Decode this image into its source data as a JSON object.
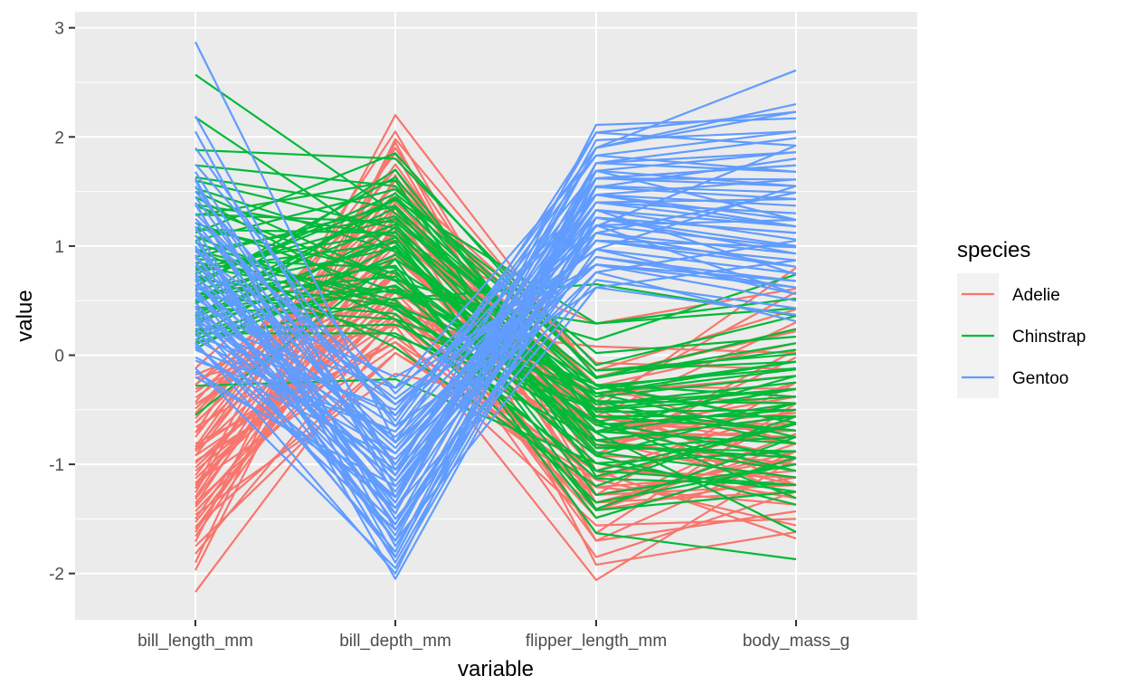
{
  "chart_data": {
    "type": "line",
    "subtype": "parallel-coordinates",
    "title": "",
    "xlabel": "variable",
    "ylabel": "value",
    "categories": [
      "bill_length_mm",
      "bill_depth_mm",
      "flipper_length_mm",
      "body_mass_g"
    ],
    "ylim": [
      -2.45,
      3.1
    ],
    "yticks": [
      -2,
      -1,
      0,
      1,
      2,
      3
    ],
    "ytick_labels": [
      "-2",
      "-1",
      "0",
      "1",
      "2",
      "3"
    ],
    "grid": true,
    "legend": {
      "title": "species",
      "placement": "right",
      "entries": [
        "Adelie",
        "Chinstrap",
        "Gentoo"
      ]
    },
    "colors": {
      "Adelie": "#F8766D",
      "Chinstrap": "#00BA38",
      "Gentoo": "#619CFF",
      "panel_background": "#EBEBEB",
      "gridline": "#FFFFFF",
      "legend_key_background": "#F2F2F2"
    },
    "series": [
      {
        "name": "Adelie",
        "values": [
          [
            -0.88,
            0.78,
            -1.42,
            -0.56
          ],
          [
            -0.81,
            0.12,
            -1.06,
            -0.5
          ],
          [
            -0.66,
            0.43,
            -0.42,
            -1.19
          ],
          [
            -1.32,
            1.09,
            -0.56,
            -0.94
          ],
          [
            -0.84,
            1.75,
            -0.78,
            -0.69
          ],
          [
            -0.92,
            0.32,
            -1.42,
            -0.72
          ],
          [
            -0.86,
            1.25,
            -0.42,
            0.58
          ],
          [
            -0.18,
            0.58,
            -1.35,
            -1.25
          ],
          [
            -1.71,
            1.98,
            -0.2,
            0.24
          ],
          [
            -1.35,
            0.32,
            -1.13,
            -0.63
          ],
          [
            -1.22,
            2.2,
            -0.2,
            0.22
          ],
          [
            -0.27,
            1.35,
            -0.49,
            0.8
          ],
          [
            -1.3,
            1.4,
            -0.27,
            -0.81
          ],
          [
            -1.59,
            0.94,
            -1.06,
            -1.68
          ],
          [
            -0.71,
            2.05,
            -1.06,
            -0.5
          ],
          [
            -0.62,
            1.14,
            -0.7,
            -0.53
          ],
          [
            -0.49,
            1.25,
            -0.91,
            -0.02
          ],
          [
            -1.22,
            0.89,
            -0.78,
            -1.0
          ],
          [
            -1.9,
            1.95,
            -1.42,
            -1.12
          ],
          [
            -1.5,
            1.14,
            -0.63,
            -0.63
          ],
          [
            -1.57,
            0.02,
            -1.06,
            -1.12
          ],
          [
            -0.92,
            1.44,
            -0.85,
            -0.44
          ],
          [
            -2.17,
            0.27,
            -2.06,
            -0.94
          ],
          [
            -1.03,
            0.73,
            -1.85,
            -1.25
          ],
          [
            -0.31,
            0.48,
            -0.35,
            -0.19
          ],
          [
            -1.17,
            0.52,
            -1.49,
            -0.94
          ],
          [
            -1.66,
            0.94,
            -0.7,
            -0.38
          ],
          [
            -0.97,
            0.17,
            -1.21,
            -1.37
          ],
          [
            -0.55,
            1.85,
            -1.28,
            -0.25
          ],
          [
            -1.39,
            0.63,
            -0.99,
            -1.31
          ],
          [
            -1.46,
            -0.17,
            -0.56,
            -0.81
          ],
          [
            -0.75,
            1.6,
            -0.28,
            0.11
          ],
          [
            -1.19,
            0.78,
            -1.7,
            -0.88
          ],
          [
            -0.43,
            1.7,
            -0.92,
            0.05
          ],
          [
            -1.75,
            0.02,
            -1.14,
            -1.56
          ],
          [
            -0.27,
            1.05,
            0.29,
            0.61
          ],
          [
            -1.13,
            0.58,
            -0.63,
            -0.69
          ],
          [
            -0.39,
            0.89,
            -0.7,
            -0.38
          ],
          [
            -1.62,
            1.14,
            -1.21,
            -1.06
          ],
          [
            -0.53,
            1.3,
            -0.78,
            -0.69
          ],
          [
            -1.43,
            0.48,
            -0.49,
            -1.31
          ],
          [
            -0.58,
            1.49,
            -1.35,
            -0.88
          ],
          [
            -1.97,
            1.65,
            -1.92,
            -1.62
          ],
          [
            -0.86,
            0.37,
            -0.78,
            -0.56
          ],
          [
            -1.26,
            1.9,
            -0.85,
            -0.25
          ],
          [
            -0.97,
            0.12,
            -1.56,
            -1.5
          ],
          [
            -0.99,
            0.63,
            -0.35,
            -0.44
          ],
          [
            -0.12,
            1.55,
            -0.14,
            0.42
          ],
          [
            -1.53,
            0.78,
            -1.42,
            -0.81
          ],
          [
            -0.21,
            0.27,
            0.08,
            0.02
          ],
          [
            -0.71,
            1.0,
            -0.92,
            -1.0
          ],
          [
            -1.06,
            0.43,
            -1.28,
            -1.19
          ],
          [
            -1.1,
            1.19,
            -0.56,
            0.3
          ],
          [
            -0.45,
            0.73,
            -1.63,
            -0.44
          ],
          [
            -1.82,
            0.38,
            -0.78,
            -1.19
          ],
          [
            -0.88,
            1.6,
            -0.07,
            -0.13
          ],
          [
            -1.37,
            1.35,
            -1.7,
            -1.43
          ],
          [
            -0.34,
            0.92,
            -0.7,
            -0.75
          ],
          [
            -1.17,
            0.07,
            -1.28,
            -0.94
          ],
          [
            -0.62,
            1.09,
            -0.28,
            -0.31
          ]
        ]
      },
      {
        "name": "Chinstrap",
        "values": [
          [
            2.57,
            1.3,
            -0.28,
            -0.62
          ],
          [
            2.18,
            0.95,
            -0.42,
            -0.44
          ],
          [
            1.88,
            1.8,
            -0.09,
            0.36
          ],
          [
            1.74,
            1.55,
            -0.59,
            -1.31
          ],
          [
            1.63,
            1.35,
            -0.78,
            -0.56
          ],
          [
            1.5,
            0.69,
            0.14,
            0.74
          ],
          [
            1.38,
            1.09,
            -1.41,
            -0.75
          ],
          [
            1.28,
            1.6,
            -1.11,
            -0.63
          ],
          [
            1.21,
            0.58,
            -0.31,
            -0.06
          ],
          [
            1.12,
            1.85,
            -0.2,
            0.05
          ],
          [
            1.03,
            0.43,
            -0.71,
            -1.62
          ],
          [
            0.95,
            1.27,
            -0.52,
            -0.5
          ],
          [
            0.88,
            0.8,
            -0.38,
            -0.19
          ],
          [
            0.8,
            1.13,
            -1.06,
            -1.19
          ],
          [
            0.73,
            0.17,
            -0.5,
            -0.38
          ],
          [
            0.67,
            1.48,
            0.02,
            0.17
          ],
          [
            0.6,
            0.98,
            -0.85,
            -0.88
          ],
          [
            0.54,
            0.38,
            -1.35,
            -1.0
          ],
          [
            0.48,
            1.7,
            -0.61,
            -0.31
          ],
          [
            0.42,
            0.63,
            -0.99,
            -1.25
          ],
          [
            0.36,
            1.43,
            -0.35,
            -0.13
          ],
          [
            0.3,
            0.88,
            -1.63,
            -1.87
          ],
          [
            0.24,
            0.28,
            -0.49,
            -0.69
          ],
          [
            0.18,
            1.17,
            -0.82,
            -0.94
          ],
          [
            0.12,
            0.52,
            0.65,
            0.36
          ],
          [
            0.06,
            1.0,
            -0.92,
            -0.44
          ],
          [
            1.45,
            0.42,
            -0.7,
            -0.81
          ],
          [
            1.29,
            1.22,
            -0.21,
            0.11
          ],
          [
            1.17,
            0.75,
            -0.64,
            -1.06
          ],
          [
            1.05,
            1.52,
            -0.14,
            -0.06
          ],
          [
            0.98,
            0.07,
            -1.2,
            -0.56
          ],
          [
            0.9,
            1.37,
            -0.45,
            -0.25
          ],
          [
            0.85,
            0.57,
            0.29,
            0.52
          ],
          [
            0.78,
            1.03,
            -0.89,
            -1.12
          ],
          [
            0.7,
            0.45,
            -0.27,
            -0.38
          ],
          [
            0.63,
            1.63,
            -0.56,
            -0.69
          ],
          [
            0.56,
            0.82,
            -1.49,
            -0.94
          ],
          [
            0.5,
            1.2,
            -0.7,
            -0.19
          ],
          [
            0.44,
            0.33,
            -0.35,
            -0.75
          ],
          [
            0.38,
            1.05,
            -1.28,
            -1.0
          ],
          [
            0.33,
            0.6,
            -0.45,
            -0.31
          ],
          [
            0.27,
            1.45,
            -0.14,
            0.01
          ],
          [
            0.2,
            0.2,
            -0.78,
            -1.06
          ],
          [
            0.14,
            0.92,
            -0.56,
            -0.56
          ],
          [
            -0.28,
            -0.22,
            -0.99,
            -0.88
          ],
          [
            -0.55,
            0.88,
            -0.27,
            -0.62
          ],
          [
            1.37,
            0.68,
            -0.71,
            -0.44
          ],
          [
            1.15,
            1.12,
            -0.42,
            -0.81
          ],
          [
            0.96,
            0.5,
            -1.13,
            -1.19
          ],
          [
            0.75,
            1.25,
            -0.21,
            0.24
          ],
          [
            0.55,
            0.72,
            -0.64,
            -0.5
          ],
          [
            0.35,
            1.08,
            -0.85,
            -0.75
          ],
          [
            1.53,
            0.95,
            -0.49,
            -0.31
          ],
          [
            1.09,
            0.33,
            -1.06,
            -0.62
          ],
          [
            0.68,
            1.42,
            0.29,
            0.43
          ],
          [
            0.22,
            0.64,
            -0.61,
            -0.94
          ],
          [
            1.6,
            1.16,
            -0.35,
            -0.06
          ],
          [
            0.82,
            0.47,
            -0.92,
            -1.37
          ],
          [
            0.47,
            1.35,
            -0.28,
            -0.12
          ],
          [
            0.1,
            0.78,
            -1.42,
            -1.25
          ]
        ]
      },
      {
        "name": "Gentoo",
        "values": [
          [
            2.87,
            -0.8,
            1.18,
            1.92
          ],
          [
            2.19,
            -1.05,
            1.62,
            1.55
          ],
          [
            2.05,
            -1.3,
            1.4,
            1.18
          ],
          [
            1.6,
            -1.6,
            0.97,
            1.55
          ],
          [
            1.45,
            -1.1,
            2.04,
            2.23
          ],
          [
            1.3,
            -0.55,
            1.69,
            1.24
          ],
          [
            1.18,
            -2.05,
            1.26,
            0.93
          ],
          [
            1.05,
            -1.45,
            1.9,
            2.61
          ],
          [
            0.98,
            -0.8,
            0.83,
            0.68
          ],
          [
            0.9,
            -1.25,
            1.47,
            1.18
          ],
          [
            0.82,
            -0.45,
            1.12,
            1.49
          ],
          [
            0.75,
            -1.7,
            1.76,
            1.86
          ],
          [
            0.68,
            -1.0,
            1.33,
            0.74
          ],
          [
            0.6,
            -1.35,
            1.97,
            2.05
          ],
          [
            0.52,
            -0.65,
            0.62,
            0.87
          ],
          [
            0.45,
            -1.85,
            1.54,
            1.43
          ],
          [
            0.38,
            -1.15,
            1.05,
            0.99
          ],
          [
            0.3,
            -0.3,
            1.83,
            1.68
          ],
          [
            0.22,
            -1.55,
            1.19,
            0.56
          ],
          [
            0.15,
            -0.9,
            1.4,
            1.3
          ],
          [
            0.08,
            -1.4,
            0.76,
            1.05
          ],
          [
            -0.05,
            -0.7,
            1.62,
            1.74
          ],
          [
            -0.12,
            -1.95,
            1.26,
            1.12
          ],
          [
            -0.2,
            -1.2,
            0.9,
            0.62
          ],
          [
            1.75,
            -0.35,
            1.47,
            1.37
          ],
          [
            1.62,
            -1.75,
            1.12,
            0.81
          ],
          [
            1.5,
            -0.6,
            1.9,
            2.3
          ],
          [
            1.38,
            -1.5,
            0.69,
            0.43
          ],
          [
            1.22,
            -1.0,
            1.54,
            1.8
          ],
          [
            1.1,
            -1.9,
            1.33,
            1.06
          ],
          [
            0.95,
            -0.4,
            0.97,
            0.75
          ],
          [
            0.85,
            -1.35,
            1.76,
            1.99
          ],
          [
            0.78,
            -0.85,
            1.19,
            1.24
          ],
          [
            0.7,
            -1.65,
            1.62,
            1.61
          ],
          [
            0.62,
            -0.2,
            0.83,
            0.5
          ],
          [
            0.55,
            -1.1,
            1.4,
            1.43
          ],
          [
            0.48,
            -1.45,
            2.11,
            2.17
          ],
          [
            0.4,
            -0.75,
            1.05,
            0.87
          ],
          [
            0.33,
            -1.8,
            1.69,
            1.55
          ],
          [
            0.25,
            -1.05,
            0.76,
            0.31
          ],
          [
            0.18,
            -0.5,
            1.47,
            1.24
          ],
          [
            0.1,
            -1.6,
            1.26,
            1.0
          ],
          [
            -0.02,
            -0.95,
            0.9,
            0.68
          ],
          [
            -0.15,
            -1.3,
            1.55,
            1.49
          ],
          [
            1.9,
            -0.65,
            1.83,
            2.05
          ],
          [
            1.68,
            -1.2,
            1.12,
            0.93
          ],
          [
            1.4,
            -1.85,
            1.62,
            1.74
          ],
          [
            1.15,
            -0.3,
            0.97,
            0.56
          ],
          [
            0.92,
            -1.4,
            1.33,
            1.18
          ],
          [
            0.72,
            -0.8,
            2.04,
            1.92
          ],
          [
            0.58,
            -1.7,
            0.62,
            0.37
          ],
          [
            0.43,
            -1.15,
            1.4,
            1.3
          ],
          [
            0.28,
            -0.55,
            1.19,
            0.99
          ],
          [
            0.12,
            -2.0,
            1.76,
            1.68
          ],
          [
            1.55,
            -1.0,
            1.47,
            1.61
          ],
          [
            1.25,
            -0.45,
            0.83,
            0.62
          ],
          [
            1.0,
            -1.55,
            1.69,
            1.86
          ],
          [
            0.65,
            -0.9,
            1.05,
            0.81
          ],
          [
            0.35,
            -1.3,
            1.9,
            2.23
          ],
          [
            0.05,
            -0.7,
            1.26,
            1.12
          ]
        ]
      }
    ]
  }
}
